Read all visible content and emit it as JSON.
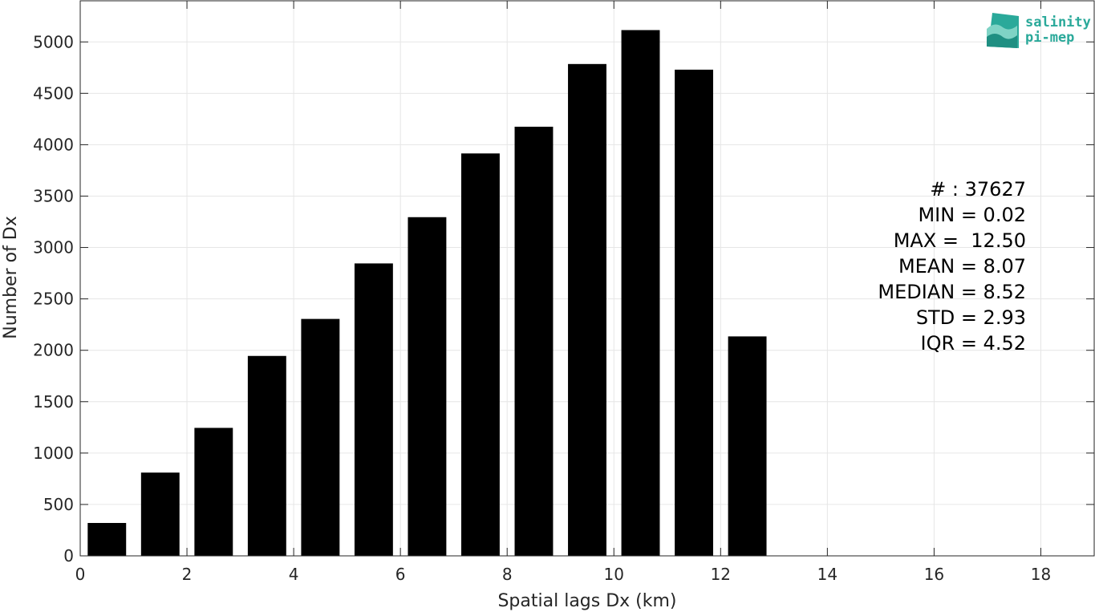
{
  "chart_data": {
    "type": "bar",
    "title": "",
    "xlabel": "Spatial lags Dx (km)",
    "ylabel": "Number of Dx",
    "xlim": [
      0,
      19
    ],
    "ylim": [
      0,
      5400
    ],
    "grid": true,
    "bar_color": "#000000",
    "bin_edges": [
      0,
      1,
      2,
      3,
      4,
      5,
      6,
      7,
      8,
      9,
      10,
      11,
      12,
      13
    ],
    "bin_centers": [
      0.5,
      1.5,
      2.5,
      3.5,
      4.5,
      5.5,
      6.5,
      7.5,
      8.5,
      9.5,
      10.5,
      11.5,
      12.5
    ],
    "values": [
      320,
      810,
      1245,
      1945,
      2305,
      2845,
      3295,
      3915,
      4175,
      4785,
      5115,
      4730,
      2135
    ],
    "x_ticks": [
      0,
      2,
      4,
      6,
      8,
      10,
      12,
      14,
      16,
      18
    ],
    "x_tick_labels": [
      "0",
      "2",
      "4",
      "6",
      "8",
      "10",
      "12",
      "14",
      "16",
      "18"
    ],
    "y_ticks": [
      0,
      500,
      1000,
      1500,
      2000,
      2500,
      3000,
      3500,
      4000,
      4500,
      5000
    ],
    "y_tick_labels": [
      "0",
      "500",
      "1000",
      "1500",
      "2000",
      "2500",
      "3000",
      "3500",
      "4000",
      "4500",
      "5000"
    ],
    "annotations": [
      "# : 37627",
      "MIN = 0.02",
      "MAX =  12.50",
      "MEAN = 8.07",
      "MEDIAN = 8.52",
      "STD = 2.93",
      "IQR = 4.52"
    ]
  },
  "logo": {
    "line1": "salinity",
    "line2": "pi-mep",
    "color": "#2aa99a"
  }
}
